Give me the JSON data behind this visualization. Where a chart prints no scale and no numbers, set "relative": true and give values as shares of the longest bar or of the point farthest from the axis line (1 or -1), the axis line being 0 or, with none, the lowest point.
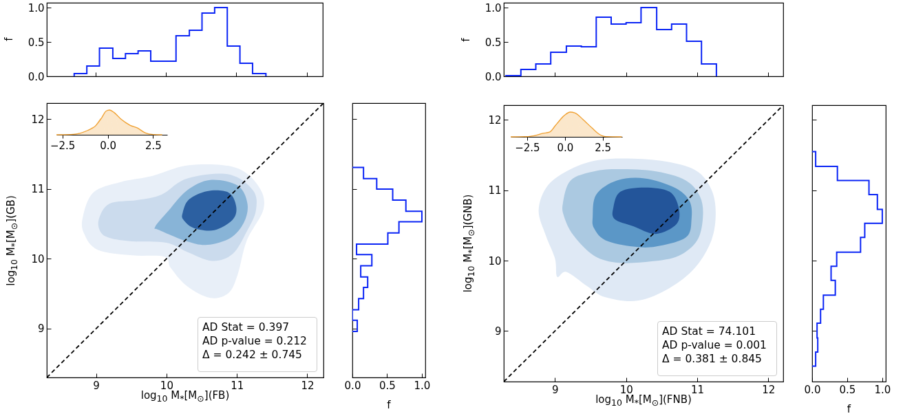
{
  "chart_data": [
    {
      "type": "histogram",
      "color": "#0a24f5",
      "bins": [
        8.69,
        8.87,
        9.05,
        9.24,
        9.42,
        9.6,
        9.78,
        9.96,
        10.14,
        10.33,
        10.51,
        10.69,
        10.87,
        11.05,
        11.23,
        11.42
      ],
      "values": [
        0.04,
        0.15,
        0.41,
        0.26,
        0.33,
        0.37,
        0.22,
        0.22,
        0.59,
        0.67,
        0.92,
        1.0,
        0.44,
        0.19,
        0.04
      ],
      "ylabel": "f",
      "xlim": [
        8.3,
        12.23
      ],
      "xticks": [
        9,
        10,
        11,
        12
      ],
      "ylim": [
        0,
        1.07
      ],
      "yticks": [
        {
          "value": 0,
          "label": "0.0"
        },
        {
          "value": 0.5,
          "label": "0.5"
        },
        {
          "value": 1,
          "label": "1.0"
        }
      ],
      "tick_labels": "y"
    },
    {
      "type": "area",
      "xlabel": "log$_{10}$ M$_{*}$[M$_{⊙}$](FB)",
      "ylabel": "log$_{10}$ M$_{*}$[M$_{⊙}$](GB)",
      "xlim": [
        8.3,
        12.23
      ],
      "ylim": [
        8.3,
        12.23
      ],
      "xticks": [
        9,
        10,
        11,
        12
      ],
      "yticks": [
        9,
        10,
        11,
        12
      ],
      "series": [
        {
          "type": "area",
          "color": "#e8eff8",
          "x": [
            8.81,
            8.96,
            9.35,
            9.77,
            10.32,
            10.97,
            11.3,
            11.38,
            11.14,
            11.01,
            10.88,
            10.62,
            10.29,
            10.06,
            9.97,
            9.51,
            9.02,
            8.83
          ],
          "values": [
            10.59,
            10.95,
            11.1,
            11.18,
            11.34,
            11.31,
            11.05,
            10.72,
            10.26,
            9.77,
            9.51,
            9.44,
            9.61,
            9.87,
            10.03,
            10.05,
            10.13,
            10.36
          ]
        },
        {
          "type": "area",
          "color": "#cbdbed",
          "x": [
            9.04,
            9.19,
            9.58,
            9.93,
            10.29,
            10.88,
            11.23,
            11.27,
            11.14,
            10.94,
            10.65,
            10.29,
            10.0,
            9.51,
            9.19,
            9.06
          ],
          "values": [
            10.57,
            10.79,
            10.84,
            10.92,
            11.15,
            11.21,
            10.98,
            10.69,
            10.39,
            10.07,
            9.97,
            10.1,
            10.23,
            10.25,
            10.3,
            10.39
          ]
        },
        {
          "type": "area",
          "color": "#88b4d7",
          "x": [
            9.84,
            10.03,
            10.29,
            10.62,
            11.01,
            11.15,
            11.1,
            10.91,
            10.58,
            10.29,
            9.9
          ],
          "values": [
            10.46,
            10.69,
            10.98,
            11.13,
            11.05,
            10.79,
            10.52,
            10.3,
            10.2,
            10.25,
            10.41
          ]
        },
        {
          "type": "area",
          "color": "#2c60a1",
          "x": [
            10.23,
            10.32,
            10.58,
            10.88,
            10.99,
            10.94,
            10.68,
            10.39,
            10.24
          ],
          "values": [
            10.66,
            10.85,
            10.97,
            10.95,
            10.75,
            10.56,
            10.41,
            10.44,
            10.56
          ]
        },
        {
          "type": "line",
          "color": "#000000",
          "line_style": "dashed",
          "x": [
            8.3,
            12.23
          ],
          "values": [
            8.3,
            12.23
          ]
        }
      ],
      "annotations": [
        "AD Stat = 0.397",
        "AD p-value = 0.212",
        "Δ = 0.242 ± 0.745"
      ]
    },
    {
      "type": "area",
      "relative": true,
      "color": "#f0a030",
      "x": [
        -2.83,
        -2.05,
        -1.54,
        -1.16,
        -0.72,
        -0.34,
        -0.09,
        0.1,
        0.35,
        0.73,
        1.24,
        1.62,
        2.06,
        2.5,
        3.0
      ],
      "values": [
        0,
        0.01,
        0.06,
        0.16,
        0.33,
        0.68,
        0.96,
        1.0,
        0.9,
        0.63,
        0.38,
        0.28,
        0.08,
        0.01,
        0
      ],
      "xlim": [
        -2.83,
        3.28
      ],
      "xticks": [
        {
          "value": -2.5,
          "label": "−2.5"
        },
        {
          "value": 0,
          "label": "0.0"
        },
        2.5
      ]
    },
    {
      "type": "histogram",
      "orientation": "horizontal",
      "color": "#0a24f5",
      "bins": [
        8.96,
        9.12,
        9.27,
        9.43,
        9.59,
        9.74,
        9.9,
        10.06,
        10.21,
        10.37,
        10.53,
        10.68,
        10.84,
        11.0,
        11.15,
        11.31
      ],
      "values": [
        0.07,
        0,
        0.09,
        0.16,
        0.22,
        0.12,
        0.28,
        0.06,
        0.51,
        0.67,
        1.0,
        0.77,
        0.58,
        0.35,
        0.16
      ],
      "xlabel": "f",
      "xlim": [
        0,
        1.05
      ],
      "xticks": [
        {
          "value": 0,
          "label": "0.0"
        },
        {
          "value": 0.5,
          "label": "0.5"
        },
        {
          "value": 1,
          "label": "1.0"
        }
      ],
      "ylim": [
        8.3,
        12.23
      ],
      "yticks": [
        9,
        10,
        11,
        12
      ],
      "tick_labels": "x"
    },
    {
      "type": "histogram",
      "color": "#0a24f5",
      "bins": [
        8.31,
        8.52,
        8.73,
        8.94,
        9.16,
        9.37,
        9.58,
        9.79,
        10.0,
        10.21,
        10.43,
        10.64,
        10.85,
        11.06,
        11.27
      ],
      "values": [
        0.01,
        0.1,
        0.18,
        0.35,
        0.44,
        0.43,
        0.86,
        0.76,
        0.78,
        1.0,
        0.68,
        0.76,
        0.51,
        0.18
      ],
      "ylabel": "f",
      "xlim": [
        8.28,
        12.21
      ],
      "xticks": [
        9,
        10,
        11,
        12
      ],
      "ylim": [
        0,
        1.07
      ],
      "yticks": [
        {
          "value": 0,
          "label": "0.0"
        },
        {
          "value": 0.5,
          "label": "0.5"
        },
        {
          "value": 1,
          "label": "1.0"
        }
      ],
      "tick_labels": "y"
    },
    {
      "type": "area",
      "xlabel": "log$_{10}$ M$_{*}$[M$_{⊙}$](FNB)",
      "ylabel": "log$_{10}$ M$_{*}$[M$_{⊙}$](GNB)",
      "xlim": [
        8.28,
        12.21
      ],
      "ylim": [
        8.28,
        12.21
      ],
      "xticks": [
        9,
        10,
        11,
        12
      ],
      "yticks": [
        9,
        10,
        11,
        12
      ],
      "series": [
        {
          "type": "area",
          "color": "#dfe9f5",
          "x": [
            8.77,
            8.9,
            9.22,
            9.61,
            10.1,
            10.61,
            11.0,
            11.2,
            11.26,
            11.2,
            10.97,
            10.61,
            10.16,
            9.71,
            9.45,
            9.16,
            9.03,
            9.0,
            8.87
          ],
          "values": [
            10.72,
            11.07,
            11.3,
            11.43,
            11.45,
            11.4,
            11.27,
            11.01,
            10.68,
            10.29,
            9.9,
            9.61,
            9.43,
            9.48,
            9.64,
            9.84,
            9.77,
            10.03,
            10.36
          ]
        },
        {
          "type": "area",
          "color": "#abc9e1",
          "x": [
            9.11,
            9.22,
            9.55,
            9.9,
            10.42,
            10.84,
            11.04,
            11.08,
            11.0,
            10.74,
            10.36,
            9.9,
            9.55,
            9.26,
            9.13
          ],
          "values": [
            10.81,
            11.14,
            11.27,
            11.3,
            11.27,
            11.14,
            10.91,
            10.62,
            10.29,
            10.07,
            9.99,
            9.97,
            10.07,
            10.36,
            10.62
          ]
        },
        {
          "type": "area",
          "color": "#5b97c7",
          "x": [
            9.53,
            9.58,
            9.87,
            10.26,
            10.68,
            10.89,
            10.92,
            10.84,
            10.42,
            10.1,
            9.71,
            9.55
          ],
          "values": [
            10.62,
            10.94,
            11.14,
            11.17,
            11.04,
            10.85,
            10.59,
            10.33,
            10.2,
            10.2,
            10.29,
            10.46
          ]
        },
        {
          "type": "area",
          "color": "#23559a",
          "x": [
            9.82,
            9.92,
            10.26,
            10.61,
            10.74,
            10.71,
            10.42,
            10.1,
            9.84
          ],
          "values": [
            10.75,
            10.98,
            11.04,
            10.98,
            10.75,
            10.52,
            10.38,
            10.49,
            10.59
          ]
        },
        {
          "type": "line",
          "color": "#000000",
          "line_style": "dashed",
          "x": [
            8.28,
            12.21
          ],
          "values": [
            8.28,
            12.21
          ]
        }
      ],
      "annotations": [
        "AD Stat = 74.101",
        "AD p-value = 0.001",
        "Δ = 0.381 ± 0.845"
      ]
    },
    {
      "type": "area",
      "relative": true,
      "color": "#f0a030",
      "x": [
        -3.59,
        -2.45,
        -1.85,
        -1.47,
        -1.02,
        -0.56,
        -0.03,
        0.35,
        0.65,
        1.18,
        1.79,
        2.24,
        2.7,
        3.76
      ],
      "values": [
        0,
        0.01,
        0.07,
        0.14,
        0.19,
        0.51,
        0.87,
        1.0,
        0.97,
        0.71,
        0.36,
        0.12,
        0.01,
        0
      ],
      "xlim": [
        -3.59,
        3.79
      ],
      "xticks": [
        {
          "value": -2.5,
          "label": "−2.5"
        },
        {
          "value": 0,
          "label": "0.0"
        },
        2.5
      ]
    },
    {
      "type": "histogram",
      "orientation": "horizontal",
      "color": "#0a24f5",
      "bins": [
        8.5,
        8.7,
        8.9,
        9.11,
        9.31,
        9.51,
        9.72,
        9.92,
        10.12,
        10.33,
        10.53,
        10.73,
        10.94,
        11.14,
        11.34,
        11.55
      ],
      "values": [
        0.05,
        0.08,
        0.07,
        0.12,
        0.16,
        0.33,
        0.27,
        0.35,
        0.69,
        0.75,
        1.0,
        0.93,
        0.81,
        0.36,
        0.05
      ],
      "xlabel": "f",
      "xlim": [
        0,
        1.05
      ],
      "xticks": [
        {
          "value": 0,
          "label": "0.0"
        },
        {
          "value": 0.5,
          "label": "0.5"
        },
        {
          "value": 1,
          "label": "1.0"
        }
      ],
      "ylim": [
        8.28,
        12.21
      ],
      "yticks": [
        9,
        10,
        11,
        12
      ],
      "tick_labels": "x"
    }
  ]
}
